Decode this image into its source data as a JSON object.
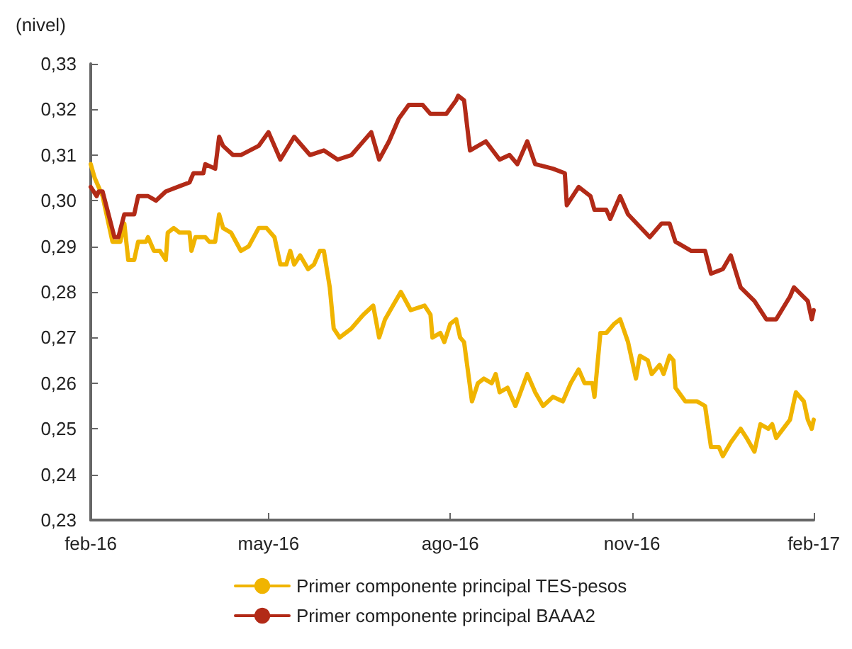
{
  "chart_data": {
    "type": "line",
    "ylabel": "(nivel)",
    "xlim": [
      "2016-02-01",
      "2017-02-01"
    ],
    "xticks": [
      {
        "value": "2016-02-01",
        "label": "feb-16"
      },
      {
        "value": "2016-05-01",
        "label": "may-16"
      },
      {
        "value": "2016-08-01",
        "label": "ago-16"
      },
      {
        "value": "2016-11-01",
        "label": "nov-16"
      },
      {
        "value": "2017-02-01",
        "label": "feb-17"
      }
    ],
    "ylim": [
      0.23,
      0.33
    ],
    "yticks": [
      {
        "value": 0.23,
        "label": "0,23"
      },
      {
        "value": 0.24,
        "label": "0,24"
      },
      {
        "value": 0.25,
        "label": "0,25"
      },
      {
        "value": 0.26,
        "label": "0,26"
      },
      {
        "value": 0.27,
        "label": "0,27"
      },
      {
        "value": 0.28,
        "label": "0,28"
      },
      {
        "value": 0.29,
        "label": "0,29"
      },
      {
        "value": 0.3,
        "label": "0,30"
      },
      {
        "value": 0.31,
        "label": "0,31"
      },
      {
        "value": 0.32,
        "label": "0,32"
      },
      {
        "value": 0.33,
        "label": "0,33"
      }
    ],
    "grid": false,
    "legend": "bottom",
    "marker": "none",
    "line_style": "solid",
    "series": [
      {
        "name": "Primer componente principal TES-pesos",
        "color": "#f0b400",
        "x": [
          "2016-02-01",
          "2016-02-03",
          "2016-02-07",
          "2016-02-12",
          "2016-02-16",
          "2016-02-18",
          "2016-02-20",
          "2016-02-23",
          "2016-02-25",
          "2016-02-29",
          "2016-03-01",
          "2016-03-04",
          "2016-03-07",
          "2016-03-10",
          "2016-03-11",
          "2016-03-14",
          "2016-03-17",
          "2016-03-22",
          "2016-03-23",
          "2016-03-25",
          "2016-03-30",
          "2016-04-01",
          "2016-04-04",
          "2016-04-06",
          "2016-04-08",
          "2016-04-12",
          "2016-04-17",
          "2016-04-21",
          "2016-04-26",
          "2016-04-30",
          "2016-05-04",
          "2016-05-07",
          "2016-05-10",
          "2016-05-12",
          "2016-05-14",
          "2016-05-17",
          "2016-05-21",
          "2016-05-24",
          "2016-05-27",
          "2016-05-29",
          "2016-06-01",
          "2016-06-03",
          "2016-06-06",
          "2016-06-12",
          "2016-06-18",
          "2016-06-23",
          "2016-06-26",
          "2016-06-29",
          "2016-07-03",
          "2016-07-07",
          "2016-07-12",
          "2016-07-19",
          "2016-07-22",
          "2016-07-23",
          "2016-07-27",
          "2016-07-29",
          "2016-08-01",
          "2016-08-04",
          "2016-08-06",
          "2016-08-08",
          "2016-08-12",
          "2016-08-15",
          "2016-08-18",
          "2016-08-22",
          "2016-08-24",
          "2016-08-26",
          "2016-08-30",
          "2016-09-03",
          "2016-09-09",
          "2016-09-13",
          "2016-09-17",
          "2016-09-22",
          "2016-09-27",
          "2016-10-01",
          "2016-10-05",
          "2016-10-08",
          "2016-10-12",
          "2016-10-13",
          "2016-10-16",
          "2016-10-19",
          "2016-10-23",
          "2016-10-26",
          "2016-10-30",
          "2016-11-03",
          "2016-11-05",
          "2016-11-09",
          "2016-11-11",
          "2016-11-15",
          "2016-11-17",
          "2016-11-20",
          "2016-11-22",
          "2016-11-23",
          "2016-11-28",
          "2016-12-04",
          "2016-12-08",
          "2016-12-11",
          "2016-12-15",
          "2016-12-17",
          "2016-12-21",
          "2016-12-26",
          "2016-12-29",
          "2017-01-02",
          "2017-01-05",
          "2017-01-09",
          "2017-01-11",
          "2017-01-13",
          "2017-01-20",
          "2017-01-23",
          "2017-01-27",
          "2017-01-29",
          "2017-01-31",
          "2017-02-01"
        ],
        "values": [
          0.308,
          0.305,
          0.301,
          0.291,
          0.291,
          0.295,
          0.287,
          0.287,
          0.291,
          0.291,
          0.292,
          0.289,
          0.289,
          0.287,
          0.293,
          0.294,
          0.293,
          0.293,
          0.289,
          0.292,
          0.292,
          0.291,
          0.291,
          0.297,
          0.294,
          0.293,
          0.289,
          0.29,
          0.294,
          0.294,
          0.292,
          0.286,
          0.286,
          0.289,
          0.286,
          0.288,
          0.285,
          0.286,
          0.289,
          0.289,
          0.281,
          0.272,
          0.27,
          0.272,
          0.275,
          0.277,
          0.27,
          0.274,
          0.277,
          0.28,
          0.276,
          0.277,
          0.275,
          0.27,
          0.271,
          0.269,
          0.273,
          0.274,
          0.27,
          0.269,
          0.256,
          0.26,
          0.261,
          0.26,
          0.262,
          0.258,
          0.259,
          0.255,
          0.262,
          0.258,
          0.255,
          0.257,
          0.256,
          0.26,
          0.263,
          0.26,
          0.26,
          0.257,
          0.271,
          0.271,
          0.273,
          0.274,
          0.269,
          0.261,
          0.266,
          0.265,
          0.262,
          0.264,
          0.262,
          0.266,
          0.265,
          0.259,
          0.256,
          0.256,
          0.255,
          0.246,
          0.246,
          0.244,
          0.247,
          0.25,
          0.248,
          0.245,
          0.251,
          0.25,
          0.251,
          0.248,
          0.252,
          0.258,
          0.256,
          0.252,
          0.25,
          0.252
        ]
      },
      {
        "name": "Primer componente principal BAAA2",
        "color": "#b22a17",
        "x": [
          "2016-02-01",
          "2016-02-04",
          "2016-02-05",
          "2016-02-07",
          "2016-02-10",
          "2016-02-13",
          "2016-02-15",
          "2016-02-18",
          "2016-02-23",
          "2016-02-25",
          "2016-03-01",
          "2016-03-05",
          "2016-03-10",
          "2016-03-22",
          "2016-03-24",
          "2016-03-29",
          "2016-03-30",
          "2016-04-04",
          "2016-04-06",
          "2016-04-08",
          "2016-04-13",
          "2016-04-17",
          "2016-04-26",
          "2016-05-01",
          "2016-05-07",
          "2016-05-14",
          "2016-05-22",
          "2016-05-29",
          "2016-06-05",
          "2016-06-12",
          "2016-06-22",
          "2016-06-26",
          "2016-07-01",
          "2016-07-06",
          "2016-07-11",
          "2016-07-18",
          "2016-07-22",
          "2016-07-30",
          "2016-08-04",
          "2016-08-05",
          "2016-08-08",
          "2016-08-11",
          "2016-08-19",
          "2016-08-26",
          "2016-08-31",
          "2016-09-04",
          "2016-09-09",
          "2016-09-13",
          "2016-09-22",
          "2016-09-28",
          "2016-09-29",
          "2016-10-05",
          "2016-10-11",
          "2016-10-13",
          "2016-10-19",
          "2016-10-21",
          "2016-10-26",
          "2016-10-30",
          "2016-11-10",
          "2016-11-16",
          "2016-11-20",
          "2016-11-23",
          "2016-12-01",
          "2016-12-08",
          "2016-12-11",
          "2016-12-17",
          "2016-12-21",
          "2016-12-26",
          "2017-01-02",
          "2017-01-08",
          "2017-01-13",
          "2017-01-20",
          "2017-01-22",
          "2017-01-29",
          "2017-01-31",
          "2017-02-01"
        ],
        "values": [
          0.303,
          0.301,
          0.302,
          0.302,
          0.297,
          0.292,
          0.292,
          0.297,
          0.297,
          0.301,
          0.301,
          0.3,
          0.302,
          0.304,
          0.306,
          0.306,
          0.308,
          0.307,
          0.314,
          0.312,
          0.31,
          0.31,
          0.312,
          0.315,
          0.309,
          0.314,
          0.31,
          0.311,
          0.309,
          0.31,
          0.315,
          0.309,
          0.313,
          0.318,
          0.321,
          0.321,
          0.319,
          0.319,
          0.322,
          0.323,
          0.322,
          0.311,
          0.313,
          0.309,
          0.31,
          0.308,
          0.313,
          0.308,
          0.307,
          0.306,
          0.299,
          0.303,
          0.301,
          0.298,
          0.298,
          0.296,
          0.301,
          0.297,
          0.292,
          0.295,
          0.295,
          0.291,
          0.289,
          0.289,
          0.284,
          0.285,
          0.288,
          0.281,
          0.278,
          0.274,
          0.274,
          0.279,
          0.281,
          0.278,
          0.274,
          0.276
        ]
      }
    ]
  }
}
